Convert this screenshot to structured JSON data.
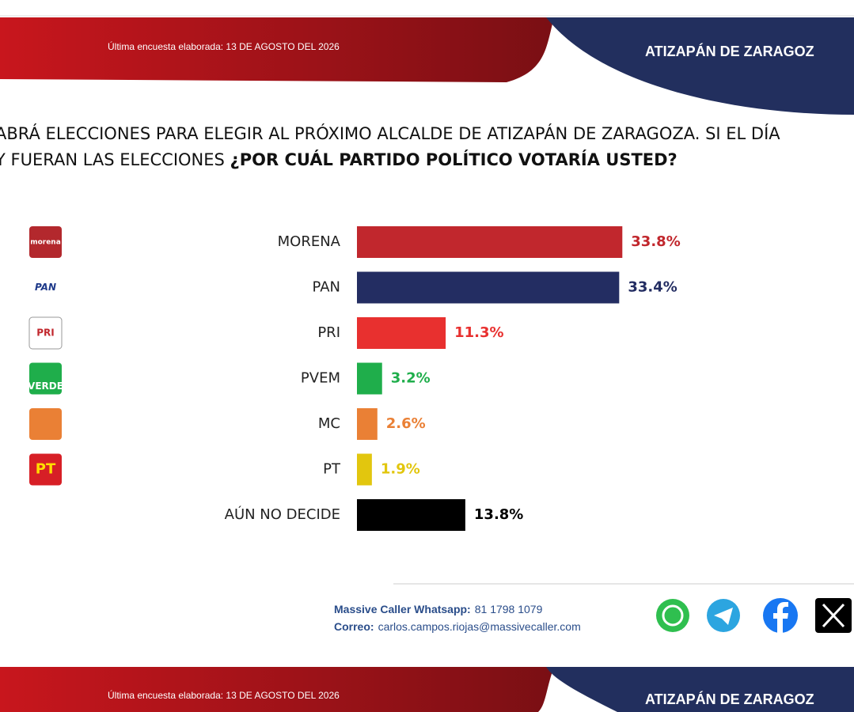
{
  "header": {
    "survey_date": "Última encuesta elaborada: 13 DE AGOSTO DEL 2026",
    "location": "ATIZAPÁN DE ZARAGOZ"
  },
  "question": {
    "line1": "ABRÁ ELECCIONES PARA ELEGIR AL PRÓXIMO ALCALDE DE ATIZAPÁN DE ZARAGOZA. SI EL DÍA",
    "line2": "Y FUERAN LAS ELECCIONES ",
    "line2_bold": "¿POR CUÁL PARTIDO POLÍTICO VOTARÍA USTED?"
  },
  "logos": [
    "morena",
    "PAN",
    "PRI",
    "VERDE",
    null,
    "PT"
  ],
  "chart_data": {
    "type": "hbar",
    "categories": [
      "MORENA",
      "PAN",
      "PRI",
      "PVEM",
      "MC",
      "PT",
      "AÚN NO DECIDE"
    ],
    "values": [
      33.8,
      33.4,
      11.3,
      3.2,
      2.6,
      1.9,
      13.8
    ],
    "value_labels": [
      "33.8%",
      "33.4%",
      "11.3%",
      "3.2%",
      "2.6%",
      "1.9%",
      "13.8%"
    ],
    "colors": [
      "#c1272d",
      "#232d62",
      "#e8302f",
      "#1fae4b",
      "#ea8035",
      "#e2c60e",
      "#000000"
    ]
  },
  "footer": {
    "whatsapp_label": "Massive Caller Whatsapp:",
    "whatsapp": "81 1798 1079",
    "email_label": "Correo:",
    "email": "carlos.campos.riojas@massivecaller.com"
  }
}
